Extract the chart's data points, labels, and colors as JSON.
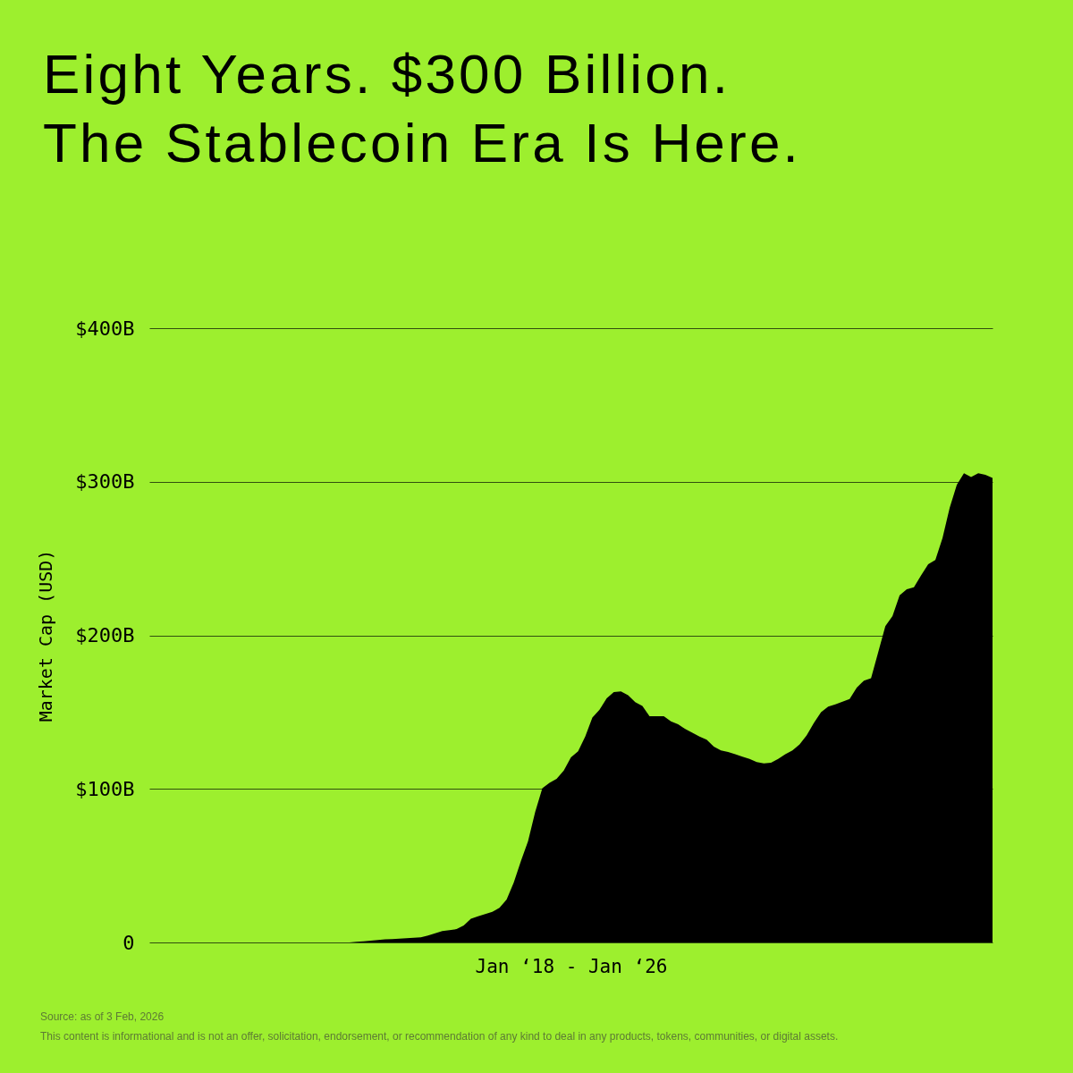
{
  "chart_data": {
    "type": "area",
    "title": "Eight Years. $300 Billion.\nThe Stablecoin Era Is Here.",
    "xlabel": "Jan ‘18 - Jan ‘26",
    "ylabel": "Market Cap (USD)",
    "annotations": [
      "Source: as of 3 Feb, 2026",
      "This content is informational and is not an offer, solicitation, endorsement, or recommendation of any kind to deal in any products, tokens, communities, or digital assets."
    ],
    "categories": [
      null,
      null,
      null,
      null,
      null,
      null,
      null,
      null,
      null,
      null,
      null,
      null,
      null,
      null,
      null,
      null,
      null,
      null,
      null,
      null,
      null,
      null,
      null,
      null,
      null,
      null,
      null,
      null,
      null,
      null,
      null,
      null,
      null,
      null,
      null,
      null,
      null,
      null,
      null,
      null,
      null,
      null,
      null,
      null,
      null,
      null,
      null,
      null,
      null,
      null,
      null,
      null,
      null,
      null,
      null,
      null,
      null,
      null,
      null,
      null,
      null,
      null,
      null,
      null,
      null,
      null,
      null,
      null,
      null,
      null,
      null,
      null,
      null,
      null,
      null,
      null,
      null,
      null,
      null,
      null,
      null,
      null,
      null,
      null,
      null,
      null,
      null,
      null,
      null,
      null,
      null,
      null,
      null,
      null,
      null,
      null,
      null,
      null,
      null,
      null,
      null,
      null,
      null,
      null,
      null,
      null,
      null,
      null,
      null,
      null,
      null,
      null,
      null,
      null,
      null,
      null,
      null,
      null,
      null
    ],
    "series": [
      {
        "color": "#000000",
        "values": [
          0,
          0,
          0,
          0,
          0,
          0,
          0,
          0,
          0,
          0,
          0,
          0,
          0,
          0,
          0,
          0,
          0,
          0,
          0,
          0,
          0,
          0,
          0,
          0,
          0,
          0,
          0,
          0,
          0,
          0.5,
          0.8,
          1.2,
          1.6,
          2,
          2.2,
          2.5,
          2.7,
          3,
          3.3,
          4.5,
          6,
          7.4,
          8,
          8.7,
          11,
          15.5,
          17,
          18.5,
          20,
          22.5,
          28,
          39,
          53,
          66,
          85,
          100.5,
          104,
          106.5,
          112,
          120.5,
          124.5,
          134,
          146.5,
          151.5,
          159,
          163,
          163.5,
          161,
          156.5,
          154,
          147.3,
          147.3,
          147.3,
          144,
          142,
          139,
          136.5,
          134,
          132,
          127.5,
          125,
          124,
          122.5,
          121,
          119.5,
          117.5,
          116.6,
          117,
          119.5,
          122.5,
          125,
          129,
          135,
          143,
          150,
          153.5,
          155,
          156.8,
          158.5,
          166,
          170.5,
          172,
          189,
          206,
          212.5,
          226,
          230,
          231.3,
          239,
          246.3,
          249,
          263.3,
          283,
          298,
          305.5,
          303,
          305.5,
          304.5,
          302.5
        ]
      }
    ],
    "ylim": [
      0,
      400
    ],
    "yticks": [
      0,
      {
        "value": 100,
        "label": "$100B"
      },
      {
        "value": 200,
        "label": "$200B"
      },
      {
        "value": 300,
        "label": "$300B"
      },
      {
        "value": 400,
        "label": "$400B"
      }
    ],
    "grid": "y",
    "tick_labels": "y"
  }
}
